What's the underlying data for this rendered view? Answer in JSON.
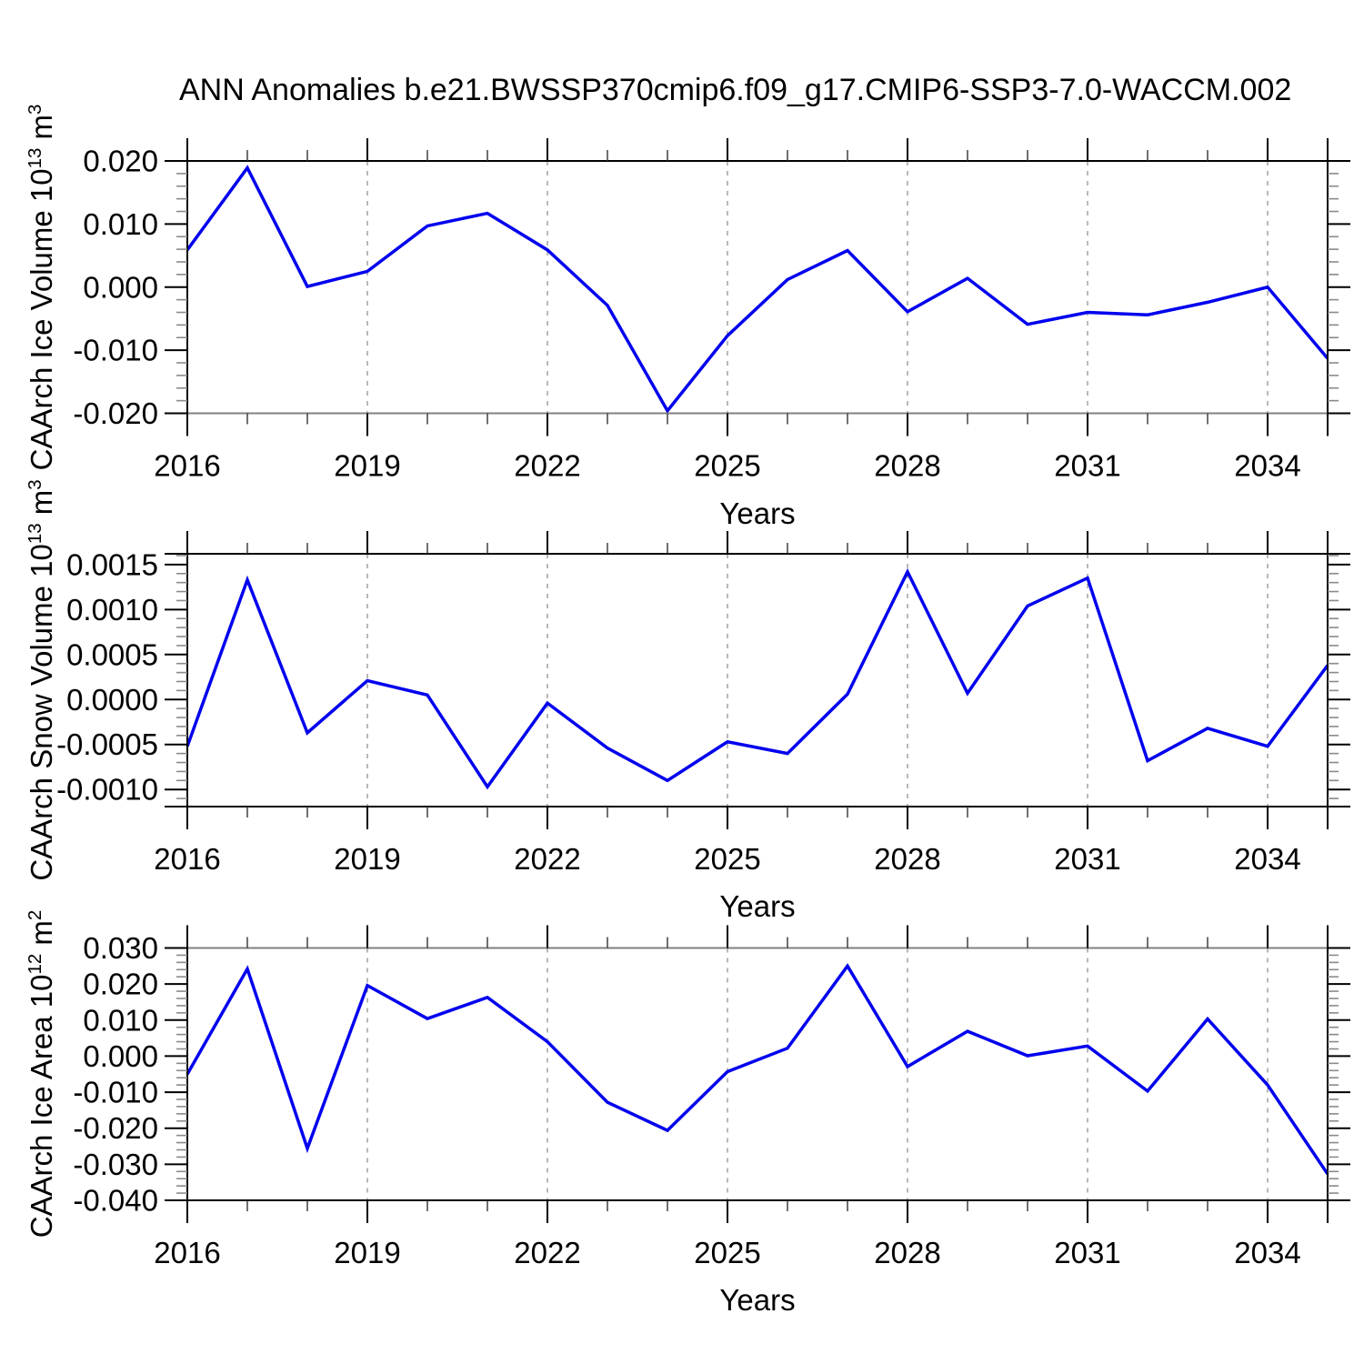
{
  "title": "ANN Anomalies b.e21.BWSSP370cmip6.f09_g17.CMIP6-SSP3-7.0-WACCM.002",
  "xlabel": "Years",
  "colors": {
    "line": "#0000ee",
    "frame": "#000000",
    "soft_frame": "#808080",
    "grid": "#8a8a8a",
    "y_minor_tick": "#8a8a8a",
    "x_minor_tick": "#333333"
  },
  "x_axis": {
    "min": 2016,
    "max": 2035,
    "major_ticks": [
      2016,
      2019,
      2022,
      2025,
      2028,
      2031,
      2034
    ],
    "tick_labels": [
      "2016",
      "2019",
      "2022",
      "2025",
      "2028",
      "2031",
      "2034"
    ],
    "grid_years": [
      2019,
      2022,
      2025,
      2028,
      2031,
      2034
    ],
    "minor_step": 1
  },
  "chart_data": [
    {
      "type": "line",
      "name": "caarch-ice-volume",
      "title": "",
      "ylabel_main": "CAArch Ice Volume 10",
      "ylabel_sup": "13",
      "ylabel_unit": " m",
      "ylabel_unit_sup": "3",
      "xlabel": "Years",
      "x": [
        2016,
        2017,
        2018,
        2019,
        2020,
        2021,
        2022,
        2023,
        2024,
        2025,
        2026,
        2027,
        2028,
        2029,
        2030,
        2031,
        2032,
        2033,
        2034,
        2035
      ],
      "values": [
        0.0059,
        0.0189,
        0.0001,
        0.0025,
        0.0097,
        0.0117,
        0.0059,
        -0.0029,
        -0.0196,
        -0.0077,
        0.0012,
        0.0058,
        -0.0039,
        0.0014,
        -0.0059,
        -0.004,
        -0.0044,
        -0.0024,
        0.0,
        -0.0113
      ],
      "ylim": [
        -0.02,
        0.02
      ],
      "ytick_values": [
        0.02,
        0.01,
        0.0,
        -0.01,
        -0.02
      ],
      "ytick_labels": [
        "0.020",
        "0.010",
        "0.000",
        "-0.010",
        "-0.020"
      ],
      "yminor_step": 0.002,
      "grid": "dashed-vertical",
      "legend": "none",
      "top_edge": "black",
      "bottom_edge": "gray"
    },
    {
      "type": "line",
      "name": "caarch-snow-volume",
      "title": "",
      "ylabel_main": "CAArch Snow Volume 10",
      "ylabel_sup": "13",
      "ylabel_unit": " m",
      "ylabel_unit_sup": "3",
      "xlabel": "Years",
      "x": [
        2016,
        2017,
        2018,
        2019,
        2020,
        2021,
        2022,
        2023,
        2024,
        2025,
        2026,
        2027,
        2028,
        2029,
        2030,
        2031,
        2032,
        2033,
        2034,
        2035
      ],
      "values": [
        -0.00052,
        0.00133,
        -0.00037,
        0.00021,
        5e-05,
        -0.00097,
        -4e-05,
        -0.00054,
        -0.0009,
        -0.00047,
        -0.0006,
        6e-05,
        0.00142,
        7e-05,
        0.00104,
        0.00135,
        -0.00068,
        -0.00032,
        -0.00052,
        0.00038
      ],
      "ylim": [
        -0.00119,
        0.00162
      ],
      "ytick_values": [
        0.0015,
        0.001,
        0.0005,
        0.0,
        -0.0005,
        -0.001
      ],
      "ytick_labels": [
        "0.0015",
        "0.0010",
        "0.0005",
        "0.0000",
        "-0.0005",
        "-0.0010"
      ],
      "yminor_step": 0.0001,
      "grid": "dashed-vertical",
      "legend": "none",
      "top_edge": "black",
      "bottom_edge": "black"
    },
    {
      "type": "line",
      "name": "caarch-ice-area",
      "title": "",
      "ylabel_main": "CAArch Ice Area 10",
      "ylabel_sup": "12",
      "ylabel_unit": " m",
      "ylabel_unit_sup": "2",
      "xlabel": "Years",
      "x": [
        2016,
        2017,
        2018,
        2019,
        2020,
        2021,
        2022,
        2023,
        2024,
        2025,
        2026,
        2027,
        2028,
        2029,
        2030,
        2031,
        2032,
        2033,
        2034,
        2035
      ],
      "values": [
        -0.005,
        0.0242,
        -0.0256,
        0.0196,
        0.0104,
        0.0163,
        0.004,
        -0.0128,
        -0.0206,
        -0.0043,
        0.0022,
        0.025,
        -0.0029,
        0.0069,
        0.0001,
        0.0028,
        -0.0097,
        0.0103,
        -0.008,
        -0.0327
      ],
      "ylim": [
        -0.04,
        0.03
      ],
      "ytick_values": [
        0.03,
        0.02,
        0.01,
        0.0,
        -0.01,
        -0.02,
        -0.03,
        -0.04
      ],
      "ytick_labels": [
        "0.030",
        "0.020",
        "0.010",
        "0.000",
        "-0.010",
        "-0.020",
        "-0.030",
        "-0.040"
      ],
      "yminor_step": 0.002,
      "grid": "dashed-vertical",
      "legend": "none",
      "top_edge": "gray",
      "bottom_edge": "black"
    }
  ]
}
